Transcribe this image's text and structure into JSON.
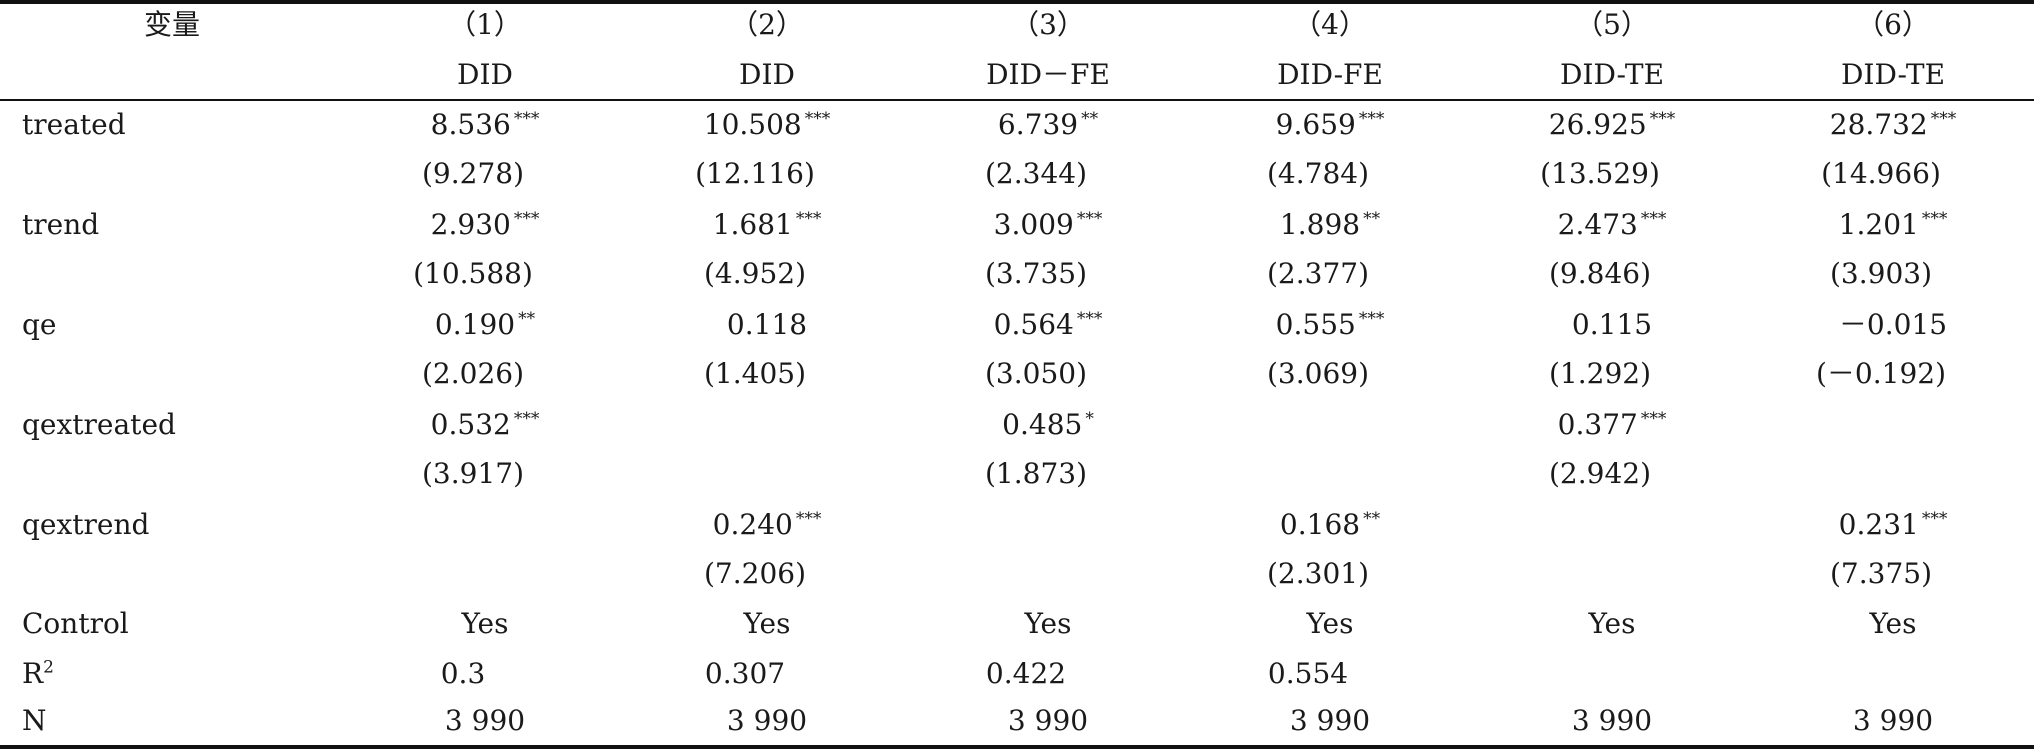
{
  "table": {
    "header": {
      "variable_label": "变量",
      "col_numbers": [
        "（1）",
        "（2）",
        "（3）",
        "（4）",
        "（5）",
        "（6）"
      ],
      "col_methods": [
        "DID",
        "DID",
        "DID－FE",
        "DID-FE",
        "DID-TE",
        "DID-TE"
      ]
    },
    "rows": [
      {
        "label": "treated",
        "coef": [
          {
            "v": "8.536",
            "s": "***"
          },
          {
            "v": "10.508",
            "s": "***"
          },
          {
            "v": "6.739",
            "s": "**"
          },
          {
            "v": "9.659",
            "s": "***"
          },
          {
            "v": "26.925",
            "s": "***"
          },
          {
            "v": "28.732",
            "s": "***"
          }
        ],
        "t": [
          "(9.278)",
          "(12.116)",
          "(2.344)",
          "(4.784)",
          "(13.529)",
          "(14.966)"
        ]
      },
      {
        "label": "trend",
        "coef": [
          {
            "v": "2.930",
            "s": "***"
          },
          {
            "v": "1.681",
            "s": "***"
          },
          {
            "v": "3.009",
            "s": "***"
          },
          {
            "v": "1.898",
            "s": "**"
          },
          {
            "v": "2.473",
            "s": "***"
          },
          {
            "v": "1.201",
            "s": "***"
          }
        ],
        "t": [
          "(10.588)",
          "(4.952)",
          "(3.735)",
          "(2.377)",
          "(9.846)",
          "(3.903)"
        ]
      },
      {
        "label": "qe",
        "coef": [
          {
            "v": "0.190",
            "s": "**"
          },
          {
            "v": "0.118",
            "s": ""
          },
          {
            "v": "0.564",
            "s": "***"
          },
          {
            "v": "0.555",
            "s": "***"
          },
          {
            "v": "0.115",
            "s": ""
          },
          {
            "v": "－0.015",
            "s": ""
          }
        ],
        "t": [
          "(2.026)",
          "(1.405)",
          "(3.050)",
          "(3.069)",
          "(1.292)",
          "(－0.192)"
        ]
      },
      {
        "label": "qextreated",
        "coef": [
          {
            "v": "0.532",
            "s": "***"
          },
          {
            "v": "",
            "s": ""
          },
          {
            "v": "0.485",
            "s": "*"
          },
          {
            "v": "",
            "s": ""
          },
          {
            "v": "0.377",
            "s": "***"
          },
          {
            "v": "",
            "s": ""
          }
        ],
        "t": [
          "(3.917)",
          "",
          "(1.873)",
          "",
          "(2.942)",
          ""
        ]
      },
      {
        "label": "qextrend",
        "coef": [
          {
            "v": "",
            "s": ""
          },
          {
            "v": "0.240",
            "s": "***"
          },
          {
            "v": "",
            "s": ""
          },
          {
            "v": "0.168",
            "s": "**"
          },
          {
            "v": "",
            "s": ""
          },
          {
            "v": "0.231",
            "s": "***"
          }
        ],
        "t": [
          "",
          "(7.206)",
          "",
          "(2.301)",
          "",
          "(7.375)"
        ]
      }
    ],
    "control": {
      "label": "Control",
      "values": [
        "Yes",
        "Yes",
        "Yes",
        "Yes",
        "Yes",
        "Yes"
      ]
    },
    "r2": {
      "label": "R",
      "label_sup": "2",
      "values": [
        "0.3",
        "0.307",
        "0.422",
        "0.554",
        "",
        ""
      ]
    },
    "n": {
      "label": "N",
      "values": [
        "3 990",
        "3 990",
        "3 990",
        "3 990",
        "3 990",
        "3 990"
      ]
    }
  }
}
